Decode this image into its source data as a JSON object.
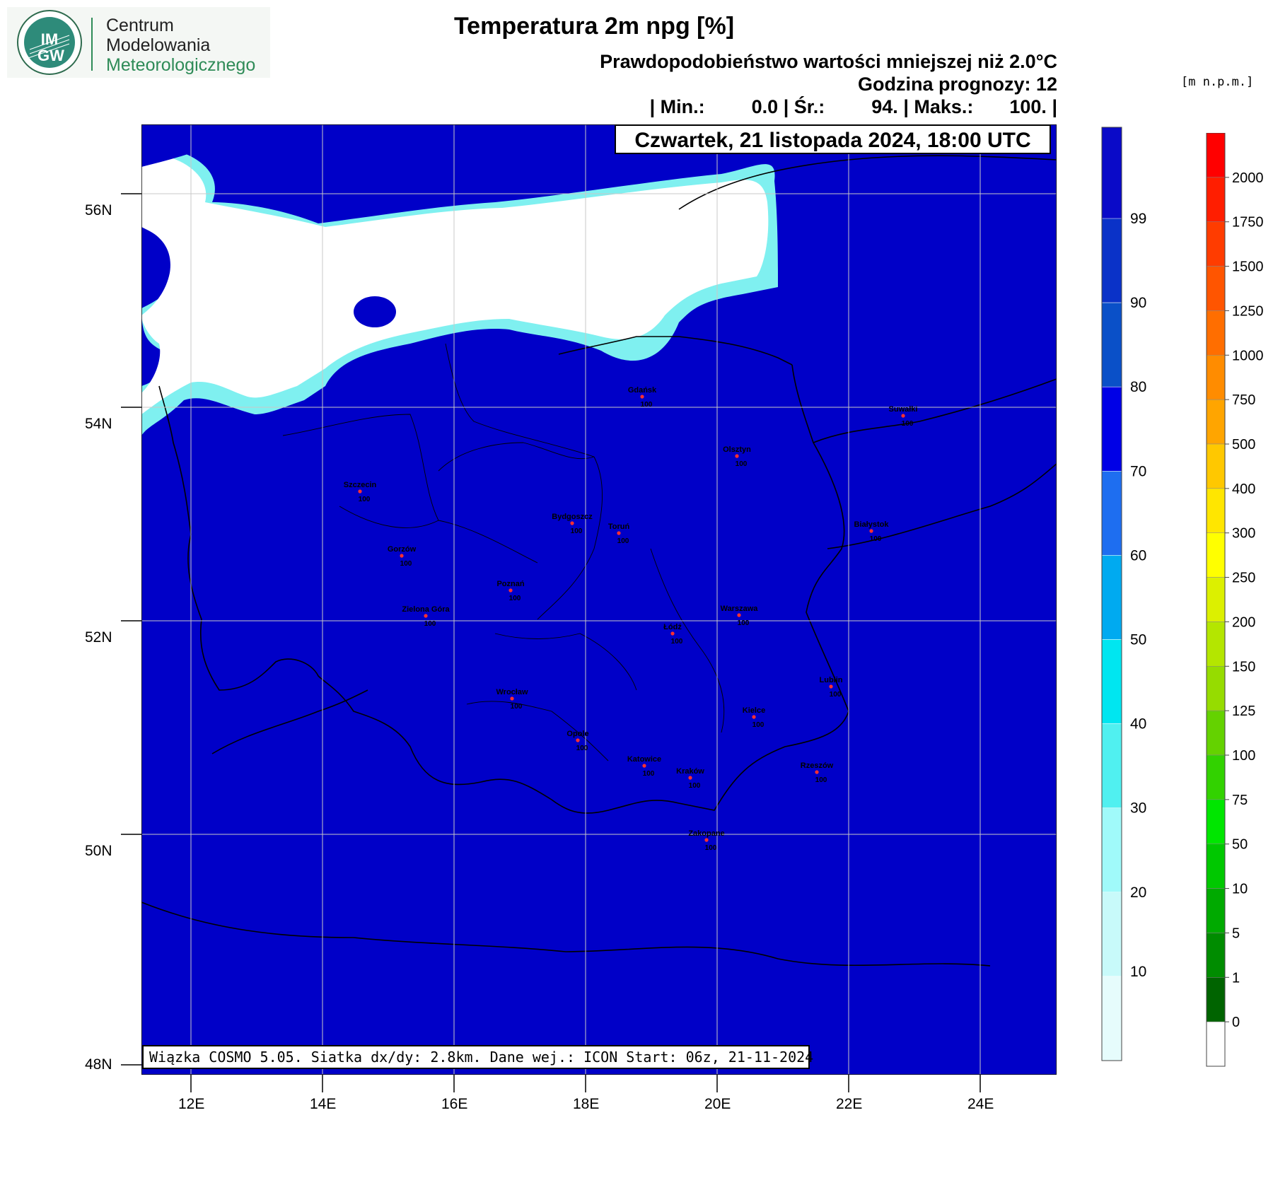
{
  "logo": {
    "badge_text_top": "IM",
    "badge_text_bottom": "GW",
    "line1": "Centrum",
    "line2": "Modelowania",
    "line3": "Meteorologicznego"
  },
  "header": {
    "title": "Temperatura 2m npg [%]",
    "subtitle": "Prawdopodobieństwo wartości mniejszej niż 2.0°C",
    "forecast_hour": "Godzina prognozy: 12",
    "stats": {
      "min_label": "| Min.:",
      "min_value": "0.0",
      "mean_label": "| Śr.:",
      "mean_value": "94.",
      "max_label": "| Maks.:",
      "max_value": "100.",
      "end": "|"
    },
    "date": "Czwartek, 21 listopada 2024, 18:00 UTC"
  },
  "footer_info": "Wiązka COSMO 5.05. Siatka dx/dy: 2.8km. Dane wej.: ICON Start: 06z, 21-11-2024",
  "axes": {
    "lat_labels": [
      "56N",
      "54N",
      "52N",
      "50N",
      "48N"
    ],
    "lon_labels": [
      "12E",
      "14E",
      "16E",
      "18E",
      "20E",
      "22E",
      "24E"
    ]
  },
  "cities": [
    {
      "name": "Gdańsk",
      "value": "100"
    },
    {
      "name": "Suwałki",
      "value": "100"
    },
    {
      "name": "Olsztyn",
      "value": "100"
    },
    {
      "name": "Szczecin",
      "value": "100"
    },
    {
      "name": "Bydgoszcz",
      "value": "100"
    },
    {
      "name": "Toruń",
      "value": "100"
    },
    {
      "name": "Białystok",
      "value": "100"
    },
    {
      "name": "Gorzów",
      "value": "100"
    },
    {
      "name": "Poznań",
      "value": "100"
    },
    {
      "name": "Warszawa",
      "value": "100"
    },
    {
      "name": "Zielona Góra",
      "value": "100"
    },
    {
      "name": "Łódź",
      "value": "100"
    },
    {
      "name": "Lublin",
      "value": "100"
    },
    {
      "name": "Wrocław",
      "value": "100"
    },
    {
      "name": "Kielce",
      "value": "100"
    },
    {
      "name": "Opole",
      "value": "100"
    },
    {
      "name": "Katowice",
      "value": "100"
    },
    {
      "name": "Kraków",
      "value": "100"
    },
    {
      "name": "Rzeszów",
      "value": "100"
    },
    {
      "name": "Zakopane",
      "value": "100"
    }
  ],
  "prob_colorbar": {
    "labels": [
      "99",
      "90",
      "80",
      "70",
      "60",
      "50",
      "40",
      "30",
      "20",
      "10"
    ],
    "colors": [
      "#0a0ac8",
      "#0a32c8",
      "#0a50c8",
      "#0000e6",
      "#1e6ef0",
      "#00aaf0",
      "#00e6f0",
      "#50f0f0",
      "#a0fafa",
      "#c8fafa",
      "#e6fcfc"
    ]
  },
  "elev_colorbar": {
    "units": "[m n.p.m.]",
    "labels": [
      "2000",
      "1750",
      "1500",
      "1250",
      "1000",
      "750",
      "500",
      "400",
      "300",
      "250",
      "200",
      "150",
      "125",
      "100",
      "75",
      "50",
      "10",
      "5",
      "1",
      "0"
    ],
    "colors": [
      "#ff0000",
      "#ff1e00",
      "#ff3c00",
      "#ff5500",
      "#ff6e00",
      "#ff8c00",
      "#ffa500",
      "#ffc800",
      "#ffe600",
      "#ffff00",
      "#dcf000",
      "#b4e600",
      "#96dc00",
      "#64d200",
      "#32d200",
      "#00e600",
      "#00c800",
      "#00aa00",
      "#008c00",
      "#006400",
      "#ffffff"
    ]
  },
  "map_colors": {
    "background": "#0000c8",
    "cloud_light": "#ffffff",
    "cloud_cyan": "#7ff0f0"
  }
}
